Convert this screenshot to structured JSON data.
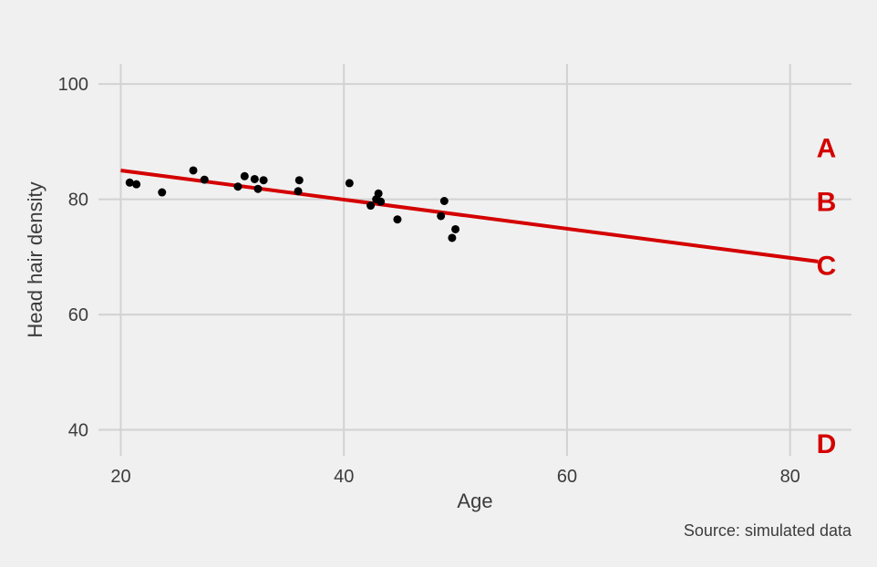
{
  "chart_data": {
    "type": "scatter",
    "xlabel": "Age",
    "ylabel": "Head hair density",
    "caption": "Source: simulated data",
    "xlim": [
      18,
      85.5
    ],
    "ylim": [
      35.5,
      103.5
    ],
    "x_ticks": [
      20,
      40,
      60,
      80
    ],
    "y_ticks": [
      40,
      60,
      80,
      100
    ],
    "grid": true,
    "points": [
      {
        "x": 20.8,
        "y": 82.9
      },
      {
        "x": 21.4,
        "y": 82.6
      },
      {
        "x": 23.7,
        "y": 81.2
      },
      {
        "x": 26.5,
        "y": 85.0
      },
      {
        "x": 27.5,
        "y": 83.4
      },
      {
        "x": 30.5,
        "y": 82.2
      },
      {
        "x": 31.1,
        "y": 84.0
      },
      {
        "x": 32.0,
        "y": 83.5
      },
      {
        "x": 32.3,
        "y": 81.8
      },
      {
        "x": 32.8,
        "y": 83.3
      },
      {
        "x": 35.9,
        "y": 81.4
      },
      {
        "x": 36.0,
        "y": 83.3
      },
      {
        "x": 40.5,
        "y": 82.8
      },
      {
        "x": 42.4,
        "y": 78.9
      },
      {
        "x": 42.9,
        "y": 80.0
      },
      {
        "x": 43.1,
        "y": 81.0
      },
      {
        "x": 43.3,
        "y": 79.6
      },
      {
        "x": 44.8,
        "y": 76.5
      },
      {
        "x": 48.7,
        "y": 77.1
      },
      {
        "x": 49.0,
        "y": 79.7
      },
      {
        "x": 49.7,
        "y": 73.3
      },
      {
        "x": 50.0,
        "y": 74.8
      }
    ],
    "fit_line": {
      "x": [
        20,
        82.5
      ],
      "y": [
        85.0,
        69.2
      ],
      "color": "#d40000"
    },
    "point_color": "#000000",
    "annotations": [
      {
        "label": "A",
        "x": 83,
        "y": 89.0
      },
      {
        "label": "B",
        "x": 83,
        "y": 79.7
      },
      {
        "label": "C",
        "x": 83,
        "y": 68.6
      },
      {
        "label": "D",
        "x": 83,
        "y": 37.7
      }
    ],
    "annotation_color": "#d40000"
  }
}
